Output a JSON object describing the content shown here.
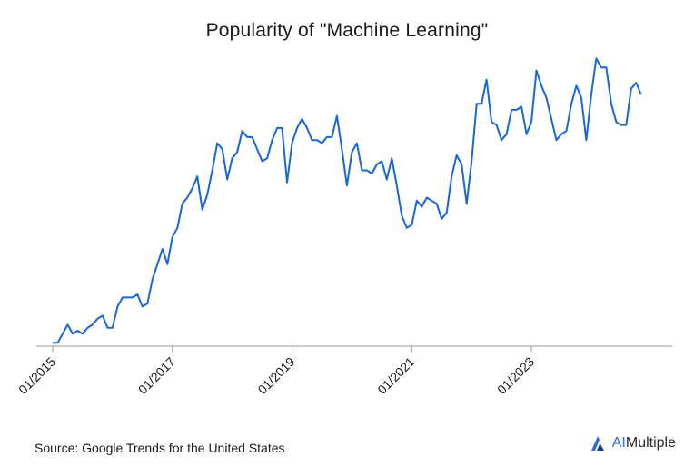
{
  "chart_data": {
    "type": "line",
    "title": "Popularity of \"Machine Learning\"",
    "xlabel": "",
    "ylabel": "",
    "x_axis_tick_labels": [
      "01/2015",
      "01/2017",
      "01/2019",
      "01/2021",
      "01/2023"
    ],
    "x_range": [
      "01/2015",
      "10/2024"
    ],
    "y_axis": "unlabeled",
    "grid": false,
    "line_color": "#1a66d2",
    "x_start": "01/2015",
    "x_step": "month",
    "series": [
      {
        "values": [
          2,
          2,
          5,
          8,
          5,
          6,
          5,
          7,
          8,
          10,
          11,
          7,
          7,
          14,
          17,
          17,
          17,
          18,
          14,
          15,
          23,
          28,
          33,
          28,
          37,
          40,
          48,
          50,
          53,
          57,
          46,
          51,
          59,
          68,
          66,
          56,
          63,
          65,
          72,
          70,
          70,
          66,
          62,
          63,
          69,
          73,
          73,
          55,
          68,
          73,
          76,
          73,
          69,
          69,
          68,
          70,
          70,
          77,
          66,
          54,
          65,
          68,
          59,
          59,
          58,
          61,
          62,
          56,
          63,
          54,
          44,
          40,
          41,
          49,
          47,
          50,
          49,
          48,
          43,
          45,
          57,
          64,
          61,
          48,
          62,
          81,
          81,
          89,
          75,
          74,
          69,
          71,
          79,
          79,
          80,
          71,
          75,
          92,
          87,
          83,
          76,
          69,
          71,
          72,
          81,
          87,
          83,
          69,
          84,
          96,
          93,
          93,
          81,
          75,
          74,
          74,
          86,
          88,
          84
        ]
      }
    ]
  },
  "footer": {
    "source": "Source: Google Trends for the United States",
    "brand_ai": "AI",
    "brand_rest": "Multiple",
    "brand_color": "#2d6fd6"
  }
}
